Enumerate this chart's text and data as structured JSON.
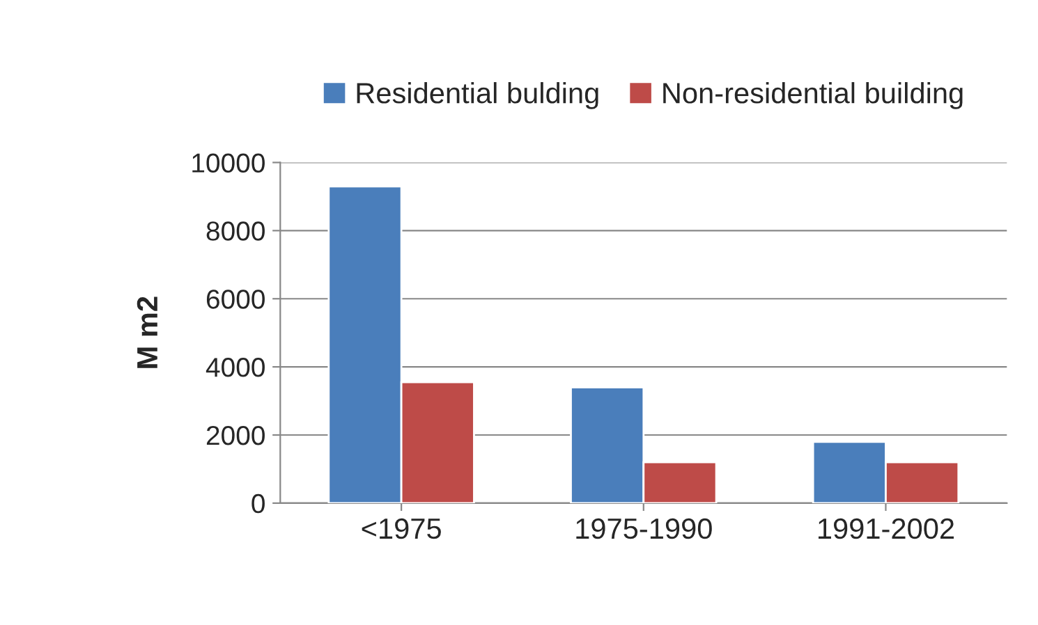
{
  "chart_data": {
    "type": "bar",
    "ylabel": "M m2",
    "categories": [
      "<1975",
      "1975-1990",
      "1991-2002"
    ],
    "series": [
      {
        "name": "Residential bulding",
        "color": "#4a7ebb",
        "values": [
          9300,
          3400,
          1800
        ]
      },
      {
        "name": "Non-residential building",
        "color": "#be4b48",
        "values": [
          3550,
          1200,
          1200
        ]
      }
    ],
    "ylim": [
      0,
      10000
    ],
    "yticks": [
      0,
      2000,
      4000,
      6000,
      8000,
      10000
    ],
    "grid": "y",
    "legend": "top"
  }
}
